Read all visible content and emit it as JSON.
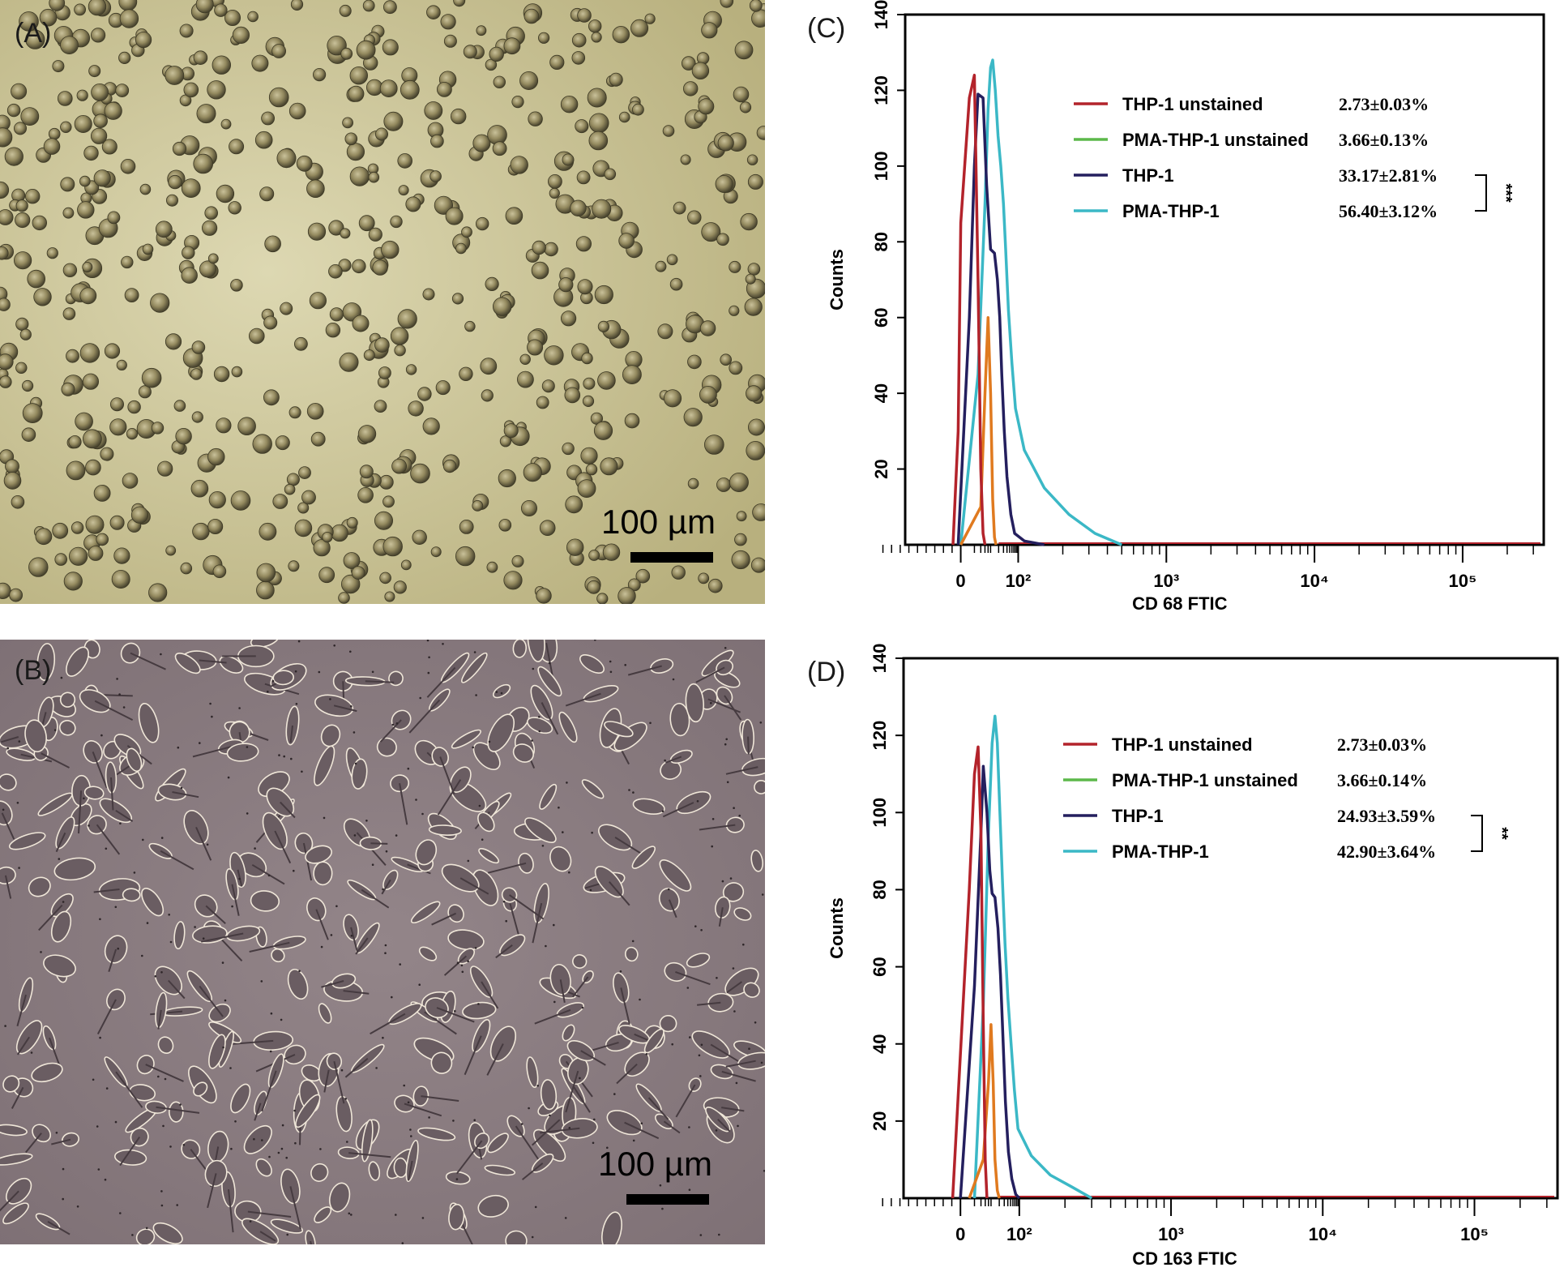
{
  "panels": {
    "A": {
      "letter": "(A)",
      "scale_label": "100 µm",
      "description_icon": "round-cells-micrograph"
    },
    "B": {
      "letter": "(B)",
      "scale_label": "100 µm",
      "description_icon": "adherent-cells-micrograph"
    }
  },
  "colors": {
    "thp1_unstained": "#b3232b",
    "pma_thp1_unstained": "#5cb84a",
    "thp1": "#241f5e",
    "pma_thp1": "#3bb8c6",
    "orange_trace": "#e07a1f",
    "micro_a_bg": "#cdc79b",
    "micro_b_bg": "#8e8084"
  },
  "chart_data": [
    {
      "panel": "(C)",
      "type": "line",
      "xlabel": "CD 68    FTIC",
      "ylabel": "Counts",
      "xscale": "biexponential",
      "x_ticks": [
        "0",
        "10²",
        "10³",
        "10⁴",
        "10⁵"
      ],
      "y_ticks": [
        "20",
        "40",
        "60",
        "80",
        "100",
        "120",
        "140"
      ],
      "ylim": [
        0,
        140
      ],
      "legend": [
        {
          "name": "THP-1 unstained",
          "value": "2.73±0.03%",
          "color": "#b3232b"
        },
        {
          "name": "PMA-THP-1 unstained",
          "value": "3.66±0.13%",
          "color": "#5cb84a"
        },
        {
          "name": "THP-1",
          "value": "33.17±2.81%",
          "color": "#241f5e"
        },
        {
          "name": "PMA-THP-1",
          "value": "56.40±3.12%",
          "color": "#3bb8c6"
        }
      ],
      "significance": "***",
      "series": [
        {
          "name": "THP-1 unstained",
          "color": "#b3232b",
          "points": [
            [
              -3,
              0
            ],
            [
              -1,
              30
            ],
            [
              0,
              85
            ],
            [
              1,
              118
            ],
            [
              2,
              124
            ],
            [
              3,
              70
            ],
            [
              4,
              20
            ],
            [
              5,
              3
            ],
            [
              6,
              0
            ]
          ]
        },
        {
          "name": "orange",
          "color": "#e07a1f",
          "points": [
            [
              0,
              0
            ],
            [
              4,
              10
            ],
            [
              6,
              40
            ],
            [
              8,
              60
            ],
            [
              10,
              40
            ],
            [
              12,
              12
            ],
            [
              14,
              2
            ],
            [
              16,
              0
            ]
          ]
        },
        {
          "name": "THP-1",
          "color": "#241f5e",
          "points": [
            [
              -1,
              0
            ],
            [
              1,
              60
            ],
            [
              2,
              100
            ],
            [
              3,
              119
            ],
            [
              5,
              118
            ],
            [
              7,
              95
            ],
            [
              10,
              78
            ],
            [
              14,
              77
            ],
            [
              18,
              70
            ],
            [
              22,
              60
            ],
            [
              26,
              45
            ],
            [
              32,
              30
            ],
            [
              40,
              18
            ],
            [
              55,
              8
            ],
            [
              75,
              3
            ],
            [
              110,
              1
            ],
            [
              150,
              0
            ]
          ]
        },
        {
          "name": "PMA-THP-1",
          "color": "#3bb8c6",
          "points": [
            [
              0,
              0
            ],
            [
              3,
              45
            ],
            [
              6,
              90
            ],
            [
              8,
              115
            ],
            [
              10,
              126
            ],
            [
              12,
              128
            ],
            [
              15,
              120
            ],
            [
              19,
              108
            ],
            [
              24,
              100
            ],
            [
              30,
              90
            ],
            [
              36,
              78
            ],
            [
              45,
              62
            ],
            [
              60,
              48
            ],
            [
              80,
              36
            ],
            [
              110,
              25
            ],
            [
              150,
              15
            ],
            [
              220,
              8
            ],
            [
              330,
              3
            ],
            [
              500,
              0
            ]
          ]
        }
      ]
    },
    {
      "panel": "(D)",
      "type": "line",
      "xlabel": "CD 163    FTIC",
      "ylabel": "Counts",
      "xscale": "biexponential",
      "x_ticks": [
        "0",
        "10²",
        "10³",
        "10⁴",
        "10⁵"
      ],
      "y_ticks": [
        "20",
        "40",
        "60",
        "80",
        "100",
        "120",
        "140"
      ],
      "ylim": [
        0,
        140
      ],
      "legend": [
        {
          "name": "THP-1 unstained",
          "value": "2.73±0.03%",
          "color": "#b3232b"
        },
        {
          "name": "PMA-THP-1 unstained",
          "value": "3.66±0.14%",
          "color": "#5cb84a"
        },
        {
          "name": "THP-1",
          "value": "24.93±3.59%",
          "color": "#241f5e"
        },
        {
          "name": "PMA-THP-1",
          "value": "42.90±3.64%",
          "color": "#3bb8c6"
        }
      ],
      "significance": "**",
      "series": [
        {
          "name": "THP-1 unstained",
          "color": "#b3232b",
          "points": [
            [
              -3,
              0
            ],
            [
              -1,
              25
            ],
            [
              1,
              80
            ],
            [
              2,
              110
            ],
            [
              3,
              117
            ],
            [
              4,
              95
            ],
            [
              5,
              45
            ],
            [
              6,
              10
            ],
            [
              7,
              0
            ]
          ]
        },
        {
          "name": "orange",
          "color": "#e07a1f",
          "points": [
            [
              1,
              0
            ],
            [
              5,
              10
            ],
            [
              8,
              30
            ],
            [
              10,
              45
            ],
            [
              12,
              30
            ],
            [
              14,
              10
            ],
            [
              17,
              2
            ],
            [
              20,
              0
            ]
          ]
        },
        {
          "name": "THP-1",
          "color": "#241f5e",
          "points": [
            [
              0,
              0
            ],
            [
              2,
              55
            ],
            [
              4,
              95
            ],
            [
              5,
              112
            ],
            [
              7,
              100
            ],
            [
              9,
              85
            ],
            [
              11,
              79
            ],
            [
              14,
              78
            ],
            [
              18,
              70
            ],
            [
              22,
              58
            ],
            [
              27,
              42
            ],
            [
              33,
              25
            ],
            [
              42,
              12
            ],
            [
              55,
              5
            ],
            [
              75,
              1
            ],
            [
              100,
              0
            ]
          ]
        },
        {
          "name": "PMA-THP-1",
          "color": "#3bb8c6",
          "points": [
            [
              2,
              0
            ],
            [
              5,
              50
            ],
            [
              8,
              95
            ],
            [
              11,
              118
            ],
            [
              14,
              125
            ],
            [
              17,
              118
            ],
            [
              21,
              100
            ],
            [
              26,
              82
            ],
            [
              32,
              66
            ],
            [
              40,
              52
            ],
            [
              52,
              40
            ],
            [
              68,
              28
            ],
            [
              90,
              18
            ],
            [
              120,
              11
            ],
            [
              160,
              6
            ],
            [
              220,
              3
            ],
            [
              300,
              0
            ]
          ]
        }
      ]
    }
  ]
}
